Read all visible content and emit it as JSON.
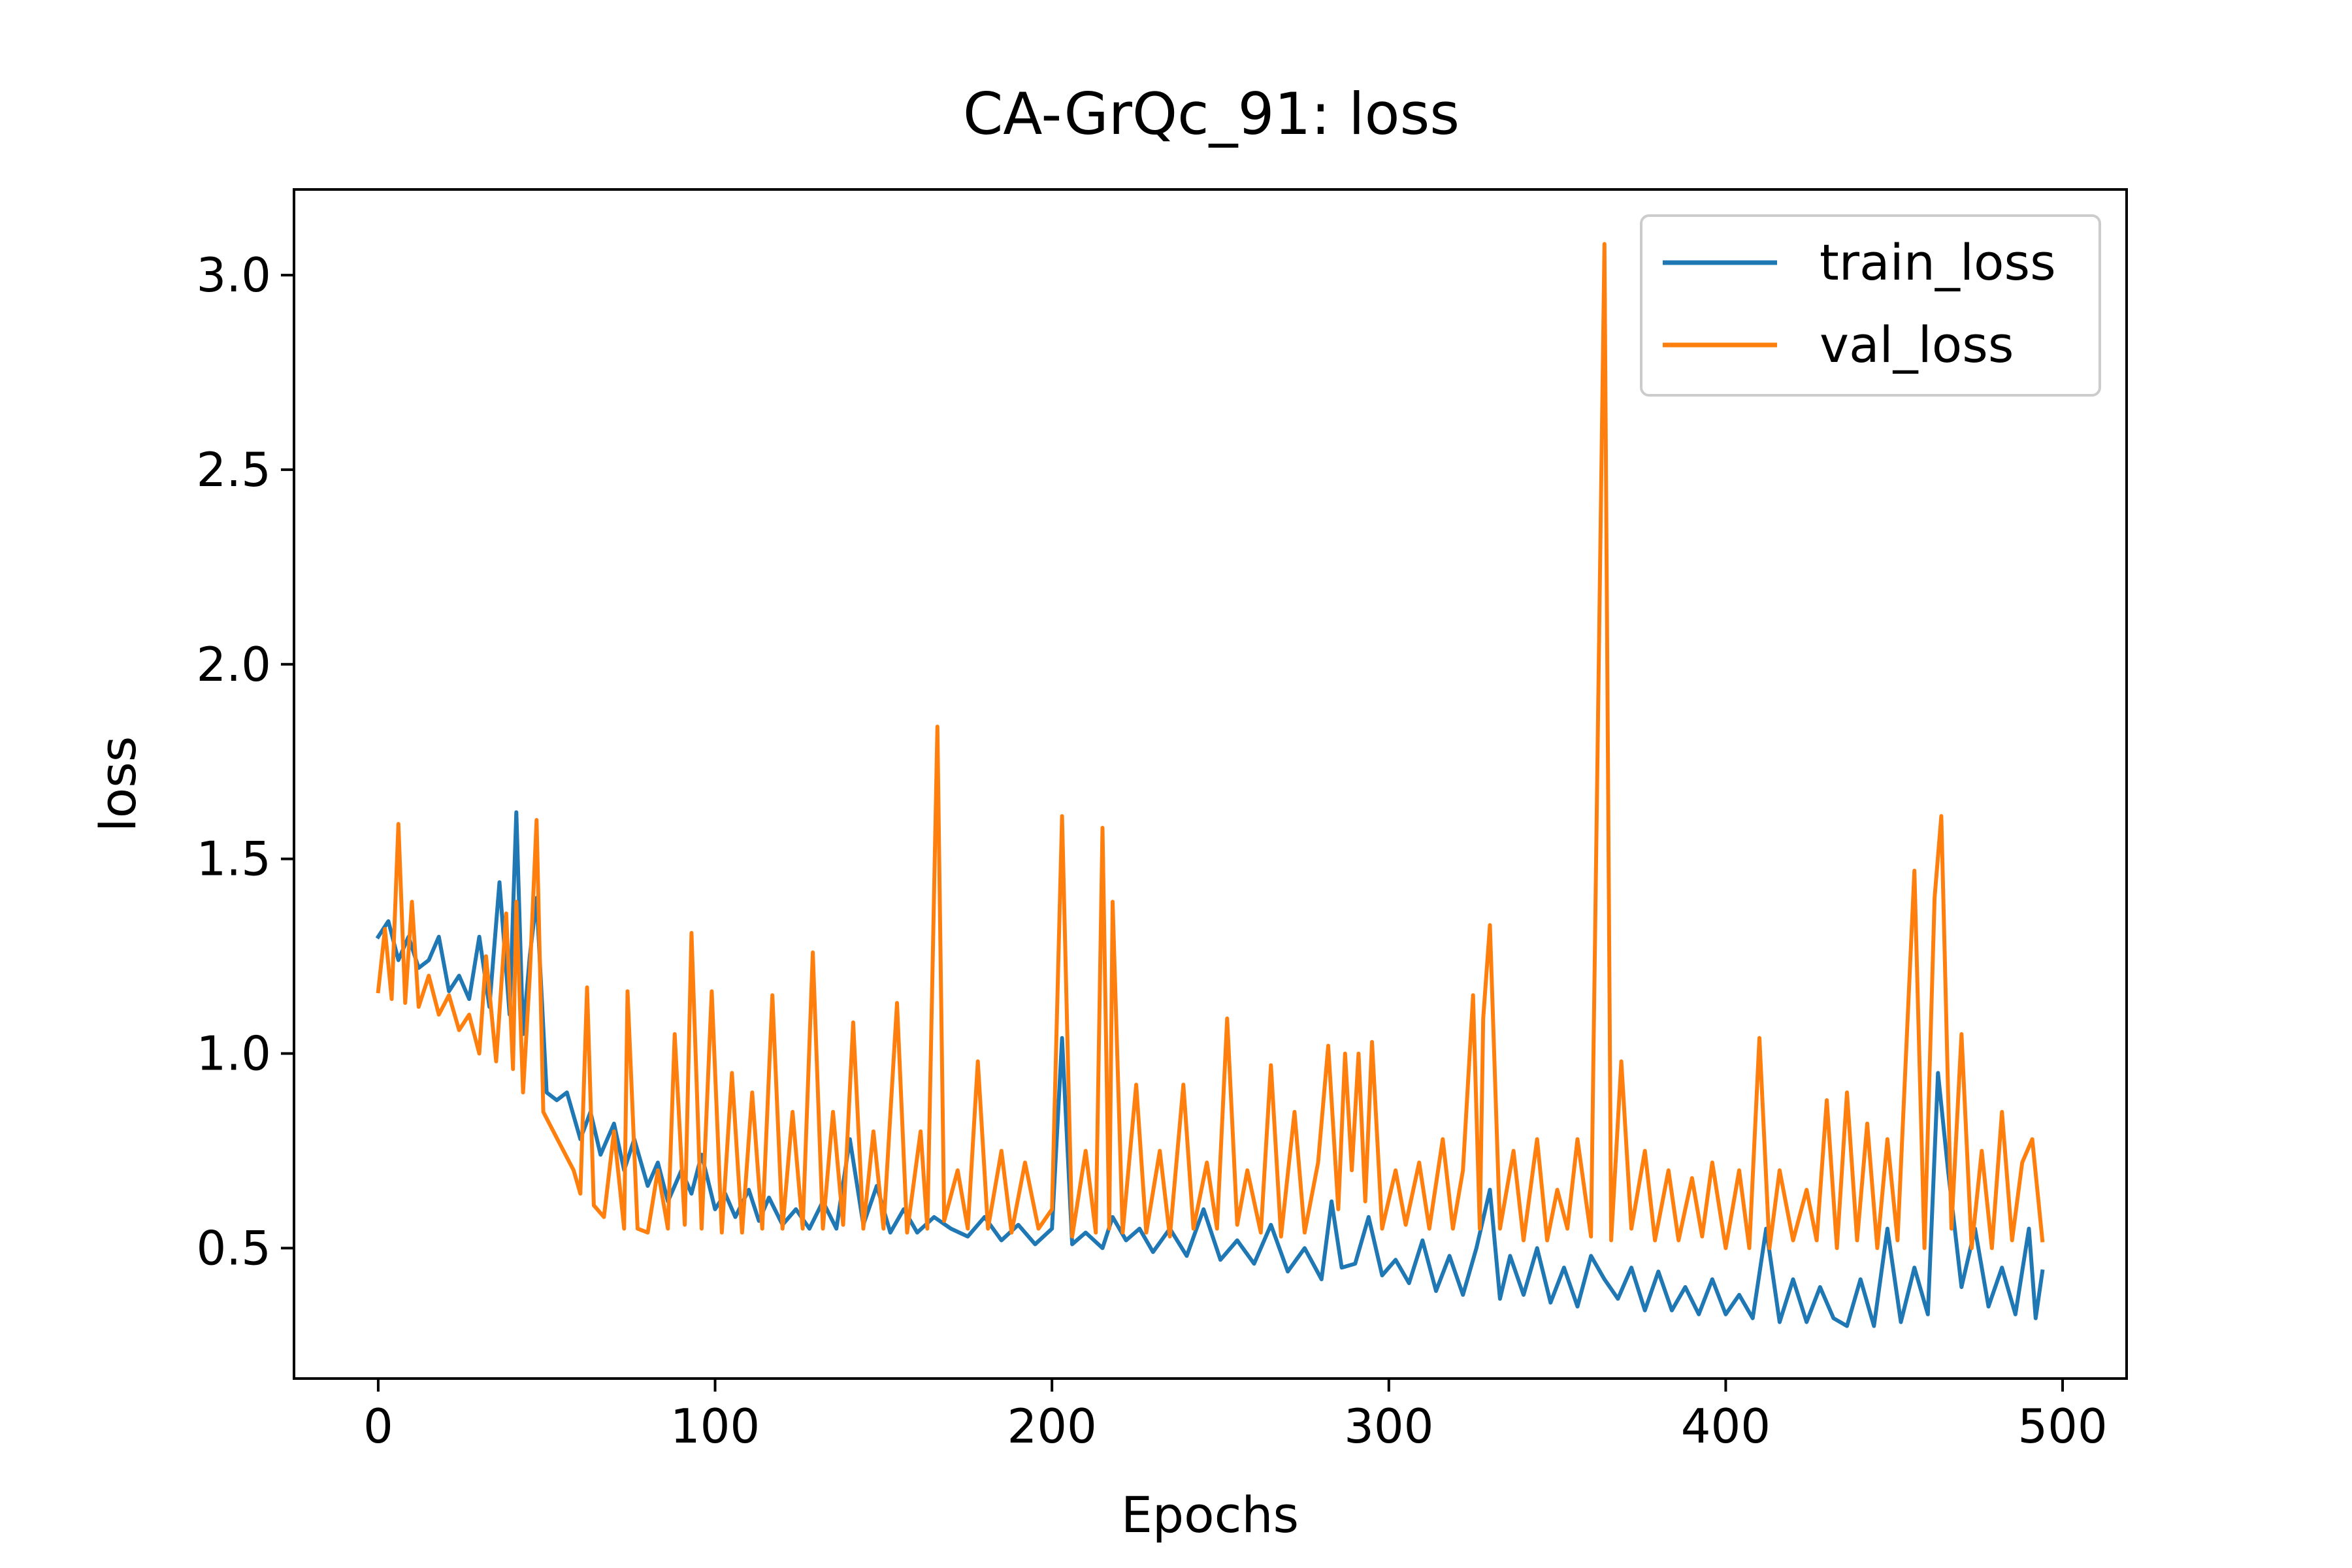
{
  "figure": {
    "title": "CA-GrQc_91: loss"
  },
  "chart_data": {
    "type": "line",
    "title": "CA-GrQc_91: loss",
    "xlabel": "Epochs",
    "ylabel": "loss",
    "xlim": [
      -25,
      519
    ],
    "ylim": [
      0.165,
      3.22
    ],
    "xticks": [
      0,
      100,
      200,
      300,
      400,
      500
    ],
    "xtick_labels": [
      "0",
      "100",
      "200",
      "300",
      "400",
      "500"
    ],
    "yticks": [
      0.5,
      1.0,
      1.5,
      2.0,
      2.5,
      3.0
    ],
    "ytick_labels": [
      "0.5",
      "1.0",
      "1.5",
      "2.0",
      "2.5",
      "3.0"
    ],
    "grid": false,
    "legend_position": "top-right",
    "series": [
      {
        "name": "train_loss",
        "color": "#1f77b4",
        "points": [
          [
            0,
            1.3
          ],
          [
            3,
            1.34
          ],
          [
            6,
            1.24
          ],
          [
            9,
            1.3
          ],
          [
            12,
            1.22
          ],
          [
            15,
            1.24
          ],
          [
            18,
            1.3
          ],
          [
            21,
            1.16
          ],
          [
            24,
            1.2
          ],
          [
            27,
            1.14
          ],
          [
            30,
            1.3
          ],
          [
            33,
            1.12
          ],
          [
            36,
            1.44
          ],
          [
            39,
            1.1
          ],
          [
            41,
            1.62
          ],
          [
            43,
            1.05
          ],
          [
            45,
            1.25
          ],
          [
            47,
            1.4
          ],
          [
            50,
            0.9
          ],
          [
            53,
            0.88
          ],
          [
            56,
            0.9
          ],
          [
            60,
            0.78
          ],
          [
            63,
            0.85
          ],
          [
            66,
            0.74
          ],
          [
            70,
            0.82
          ],
          [
            73,
            0.7
          ],
          [
            76,
            0.78
          ],
          [
            80,
            0.66
          ],
          [
            83,
            0.72
          ],
          [
            86,
            0.62
          ],
          [
            90,
            0.7
          ],
          [
            93,
            0.64
          ],
          [
            96,
            0.74
          ],
          [
            100,
            0.6
          ],
          [
            103,
            0.64
          ],
          [
            106,
            0.58
          ],
          [
            110,
            0.65
          ],
          [
            113,
            0.57
          ],
          [
            116,
            0.63
          ],
          [
            120,
            0.56
          ],
          [
            124,
            0.6
          ],
          [
            128,
            0.55
          ],
          [
            132,
            0.62
          ],
          [
            136,
            0.55
          ],
          [
            140,
            0.78
          ],
          [
            144,
            0.56
          ],
          [
            148,
            0.66
          ],
          [
            152,
            0.54
          ],
          [
            156,
            0.6
          ],
          [
            160,
            0.54
          ],
          [
            165,
            0.58
          ],
          [
            170,
            0.55
          ],
          [
            175,
            0.53
          ],
          [
            180,
            0.58
          ],
          [
            185,
            0.52
          ],
          [
            190,
            0.56
          ],
          [
            195,
            0.51
          ],
          [
            200,
            0.55
          ],
          [
            203,
            1.04
          ],
          [
            206,
            0.51
          ],
          [
            210,
            0.54
          ],
          [
            215,
            0.5
          ],
          [
            218,
            0.58
          ],
          [
            222,
            0.52
          ],
          [
            226,
            0.55
          ],
          [
            230,
            0.49
          ],
          [
            235,
            0.55
          ],
          [
            240,
            0.48
          ],
          [
            245,
            0.6
          ],
          [
            250,
            0.47
          ],
          [
            255,
            0.52
          ],
          [
            260,
            0.46
          ],
          [
            265,
            0.56
          ],
          [
            270,
            0.44
          ],
          [
            275,
            0.5
          ],
          [
            280,
            0.42
          ],
          [
            283,
            0.62
          ],
          [
            286,
            0.45
          ],
          [
            290,
            0.46
          ],
          [
            294,
            0.58
          ],
          [
            298,
            0.43
          ],
          [
            302,
            0.47
          ],
          [
            306,
            0.41
          ],
          [
            310,
            0.52
          ],
          [
            314,
            0.39
          ],
          [
            318,
            0.48
          ],
          [
            322,
            0.38
          ],
          [
            326,
            0.5
          ],
          [
            330,
            0.65
          ],
          [
            333,
            0.37
          ],
          [
            336,
            0.48
          ],
          [
            340,
            0.38
          ],
          [
            344,
            0.5
          ],
          [
            348,
            0.36
          ],
          [
            352,
            0.45
          ],
          [
            356,
            0.35
          ],
          [
            360,
            0.48
          ],
          [
            364,
            0.42
          ],
          [
            368,
            0.37
          ],
          [
            372,
            0.45
          ],
          [
            376,
            0.34
          ],
          [
            380,
            0.44
          ],
          [
            384,
            0.34
          ],
          [
            388,
            0.4
          ],
          [
            392,
            0.33
          ],
          [
            396,
            0.42
          ],
          [
            400,
            0.33
          ],
          [
            404,
            0.38
          ],
          [
            408,
            0.32
          ],
          [
            412,
            0.55
          ],
          [
            416,
            0.31
          ],
          [
            420,
            0.42
          ],
          [
            424,
            0.31
          ],
          [
            428,
            0.4
          ],
          [
            432,
            0.32
          ],
          [
            436,
            0.3
          ],
          [
            440,
            0.42
          ],
          [
            444,
            0.3
          ],
          [
            448,
            0.55
          ],
          [
            452,
            0.31
          ],
          [
            456,
            0.45
          ],
          [
            460,
            0.33
          ],
          [
            463,
            0.95
          ],
          [
            466,
            0.7
          ],
          [
            470,
            0.4
          ],
          [
            474,
            0.55
          ],
          [
            478,
            0.35
          ],
          [
            482,
            0.45
          ],
          [
            486,
            0.33
          ],
          [
            490,
            0.55
          ],
          [
            492,
            0.32
          ],
          [
            494,
            0.44
          ]
        ]
      },
      {
        "name": "val_loss",
        "color": "#ff7f0e",
        "points": [
          [
            0,
            1.16
          ],
          [
            2,
            1.32
          ],
          [
            4,
            1.14
          ],
          [
            6,
            1.59
          ],
          [
            8,
            1.13
          ],
          [
            10,
            1.39
          ],
          [
            12,
            1.12
          ],
          [
            15,
            1.2
          ],
          [
            18,
            1.1
          ],
          [
            21,
            1.15
          ],
          [
            24,
            1.06
          ],
          [
            27,
            1.1
          ],
          [
            30,
            1.0
          ],
          [
            32,
            1.25
          ],
          [
            35,
            0.98
          ],
          [
            38,
            1.36
          ],
          [
            40,
            0.96
          ],
          [
            41,
            1.39
          ],
          [
            43,
            0.9
          ],
          [
            45,
            1.2
          ],
          [
            47,
            1.6
          ],
          [
            49,
            0.85
          ],
          [
            52,
            0.8
          ],
          [
            55,
            0.75
          ],
          [
            58,
            0.7
          ],
          [
            60,
            0.64
          ],
          [
            62,
            1.17
          ],
          [
            64,
            0.61
          ],
          [
            67,
            0.58
          ],
          [
            70,
            0.8
          ],
          [
            73,
            0.55
          ],
          [
            74,
            1.16
          ],
          [
            77,
            0.55
          ],
          [
            80,
            0.54
          ],
          [
            83,
            0.7
          ],
          [
            86,
            0.55
          ],
          [
            88,
            1.05
          ],
          [
            91,
            0.56
          ],
          [
            93,
            1.31
          ],
          [
            96,
            0.55
          ],
          [
            99,
            1.16
          ],
          [
            102,
            0.54
          ],
          [
            105,
            0.95
          ],
          [
            108,
            0.54
          ],
          [
            111,
            0.9
          ],
          [
            114,
            0.55
          ],
          [
            117,
            1.15
          ],
          [
            120,
            0.55
          ],
          [
            123,
            0.85
          ],
          [
            126,
            0.55
          ],
          [
            129,
            1.26
          ],
          [
            132,
            0.55
          ],
          [
            135,
            0.85
          ],
          [
            138,
            0.56
          ],
          [
            141,
            1.08
          ],
          [
            144,
            0.55
          ],
          [
            147,
            0.8
          ],
          [
            150,
            0.55
          ],
          [
            154,
            1.13
          ],
          [
            157,
            0.54
          ],
          [
            161,
            0.8
          ],
          [
            163,
            0.55
          ],
          [
            166,
            1.84
          ],
          [
            168,
            0.57
          ],
          [
            172,
            0.7
          ],
          [
            175,
            0.55
          ],
          [
            178,
            0.98
          ],
          [
            181,
            0.55
          ],
          [
            185,
            0.75
          ],
          [
            188,
            0.54
          ],
          [
            192,
            0.72
          ],
          [
            196,
            0.55
          ],
          [
            200,
            0.6
          ],
          [
            203,
            1.61
          ],
          [
            206,
            0.53
          ],
          [
            210,
            0.75
          ],
          [
            213,
            0.54
          ],
          [
            215,
            1.58
          ],
          [
            217,
            0.55
          ],
          [
            218,
            1.39
          ],
          [
            221,
            0.54
          ],
          [
            225,
            0.92
          ],
          [
            228,
            0.54
          ],
          [
            232,
            0.75
          ],
          [
            235,
            0.53
          ],
          [
            239,
            0.92
          ],
          [
            242,
            0.55
          ],
          [
            246,
            0.72
          ],
          [
            249,
            0.55
          ],
          [
            252,
            1.09
          ],
          [
            255,
            0.56
          ],
          [
            258,
            0.7
          ],
          [
            262,
            0.54
          ],
          [
            265,
            0.97
          ],
          [
            268,
            0.53
          ],
          [
            272,
            0.85
          ],
          [
            275,
            0.54
          ],
          [
            279,
            0.72
          ],
          [
            282,
            1.02
          ],
          [
            285,
            0.6
          ],
          [
            287,
            1.0
          ],
          [
            289,
            0.7
          ],
          [
            291,
            1.0
          ],
          [
            293,
            0.62
          ],
          [
            295,
            1.03
          ],
          [
            298,
            0.55
          ],
          [
            302,
            0.7
          ],
          [
            305,
            0.56
          ],
          [
            309,
            0.72
          ],
          [
            312,
            0.55
          ],
          [
            316,
            0.78
          ],
          [
            319,
            0.55
          ],
          [
            322,
            0.7
          ],
          [
            325,
            1.15
          ],
          [
            327,
            0.55
          ],
          [
            328,
            1.09
          ],
          [
            330,
            1.33
          ],
          [
            333,
            0.55
          ],
          [
            337,
            0.75
          ],
          [
            340,
            0.52
          ],
          [
            344,
            0.78
          ],
          [
            347,
            0.52
          ],
          [
            350,
            0.65
          ],
          [
            353,
            0.55
          ],
          [
            356,
            0.78
          ],
          [
            360,
            0.53
          ],
          [
            364,
            3.08
          ],
          [
            366,
            0.52
          ],
          [
            369,
            0.98
          ],
          [
            372,
            0.55
          ],
          [
            376,
            0.75
          ],
          [
            379,
            0.52
          ],
          [
            383,
            0.7
          ],
          [
            386,
            0.52
          ],
          [
            390,
            0.68
          ],
          [
            393,
            0.53
          ],
          [
            396,
            0.72
          ],
          [
            400,
            0.5
          ],
          [
            404,
            0.7
          ],
          [
            407,
            0.5
          ],
          [
            410,
            1.04
          ],
          [
            413,
            0.5
          ],
          [
            416,
            0.7
          ],
          [
            420,
            0.52
          ],
          [
            424,
            0.65
          ],
          [
            427,
            0.52
          ],
          [
            430,
            0.88
          ],
          [
            433,
            0.5
          ],
          [
            436,
            0.9
          ],
          [
            439,
            0.52
          ],
          [
            442,
            0.82
          ],
          [
            445,
            0.5
          ],
          [
            448,
            0.78
          ],
          [
            451,
            0.52
          ],
          [
            456,
            1.47
          ],
          [
            459,
            0.5
          ],
          [
            462,
            1.4
          ],
          [
            464,
            1.61
          ],
          [
            467,
            0.55
          ],
          [
            470,
            1.05
          ],
          [
            473,
            0.5
          ],
          [
            476,
            0.75
          ],
          [
            479,
            0.5
          ],
          [
            482,
            0.85
          ],
          [
            485,
            0.52
          ],
          [
            488,
            0.72
          ],
          [
            491,
            0.78
          ],
          [
            494,
            0.52
          ]
        ]
      }
    ]
  }
}
